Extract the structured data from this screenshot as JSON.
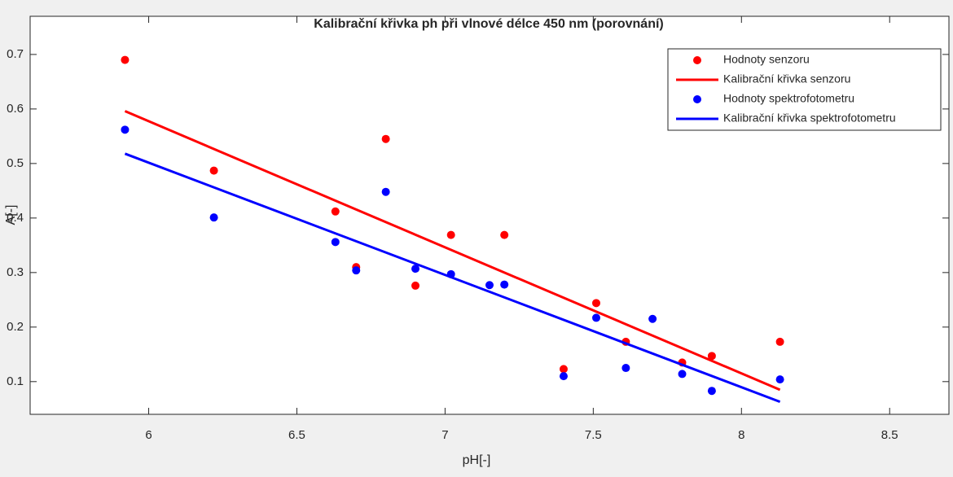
{
  "chart_data": {
    "type": "scatter",
    "title": "Kalibrační křivka ph při vlnové délce 450 nm (porovnání)",
    "x_label": "pH[-]",
    "y_label": "A[-]",
    "xlim": [
      5.6,
      8.7
    ],
    "xticks": [
      6,
      6.5,
      7,
      7.5,
      8,
      8.5
    ],
    "ylim": [
      0.04,
      0.77
    ],
    "yticks": [
      0.1,
      0.2,
      0.3,
      0.4,
      0.5,
      0.6,
      0.7
    ],
    "legend": "northeast",
    "series": [
      {
        "name": "Hodnoty senzoru",
        "type": "scatter",
        "color": "#ff0000",
        "x": [
          5.92,
          6.22,
          6.63,
          6.7,
          6.8,
          6.9,
          7.02,
          7.2,
          7.4,
          7.51,
          7.61,
          7.8,
          7.9,
          8.13
        ],
        "values": [
          0.69,
          0.487,
          0.412,
          0.31,
          0.545,
          0.276,
          0.369,
          0.369,
          0.123,
          0.244,
          0.173,
          0.135,
          0.147,
          0.173
        ]
      },
      {
        "name": "Kalibrační křivka senzoru",
        "type": "line",
        "color": "#ff0000",
        "x": [
          5.92,
          8.13
        ],
        "values": [
          0.596,
          0.085
        ]
      },
      {
        "name": "Hodnoty spektrofotometru",
        "type": "scatter",
        "color": "#0000ff",
        "x": [
          5.92,
          6.22,
          6.63,
          6.7,
          6.8,
          6.9,
          7.02,
          7.15,
          7.2,
          7.4,
          7.51,
          7.61,
          7.7,
          7.8,
          7.9,
          8.13
        ],
        "values": [
          0.562,
          0.401,
          0.356,
          0.304,
          0.448,
          0.307,
          0.297,
          0.277,
          0.278,
          0.11,
          0.217,
          0.125,
          0.215,
          0.114,
          0.083,
          0.104
        ]
      },
      {
        "name": "Kalibrační křivka spektrofotometru",
        "type": "line",
        "color": "#0000ff",
        "x": [
          5.92,
          8.13
        ],
        "values": [
          0.518,
          0.063
        ]
      }
    ]
  }
}
